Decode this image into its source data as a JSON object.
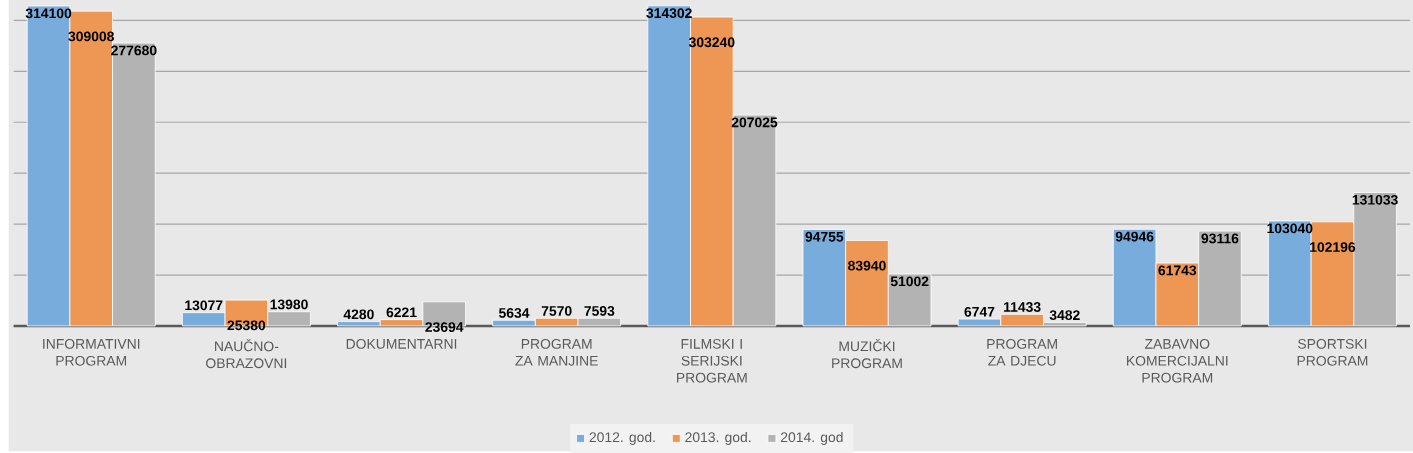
{
  "chart_data": {
    "type": "bar",
    "categories": [
      "INFORMATIVNI PROGRAM",
      "NAUČNO-OBRAZOVNI",
      "DOKUMENTARNI",
      "PROGRAM ZA MANJINE",
      "FILMSKI I SERIJSKI PROGRAM",
      "MUZIČKI PROGRAM",
      "PROGRAM ZA DJECU",
      "ZABAVNO KOMERCIJALNI PROGRAM",
      "SPORTSKI PROGRAM"
    ],
    "series": [
      {
        "name": "2012. god.",
        "color": "#78acdc",
        "values": [
          314100,
          13077,
          4280,
          5634,
          314302,
          94755,
          6747,
          94946,
          103040
        ]
      },
      {
        "name": "2013. god.",
        "color": "#ee9654",
        "values": [
          309008,
          25380,
          6221,
          7570,
          303240,
          83940,
          11433,
          61743,
          102196
        ]
      },
      {
        "name": "2014. god",
        "color": "#b3b3b3",
        "values": [
          277680,
          13980,
          23694,
          7593,
          207025,
          51002,
          3482,
          93116,
          131033
        ]
      }
    ],
    "ylim": [
      0,
      320000
    ],
    "yticks": [
      0,
      50000,
      100000,
      150000,
      200000,
      250000,
      300000
    ],
    "grid": "y",
    "legend": "bottom",
    "data_labels": true,
    "tick_labels": "x"
  }
}
